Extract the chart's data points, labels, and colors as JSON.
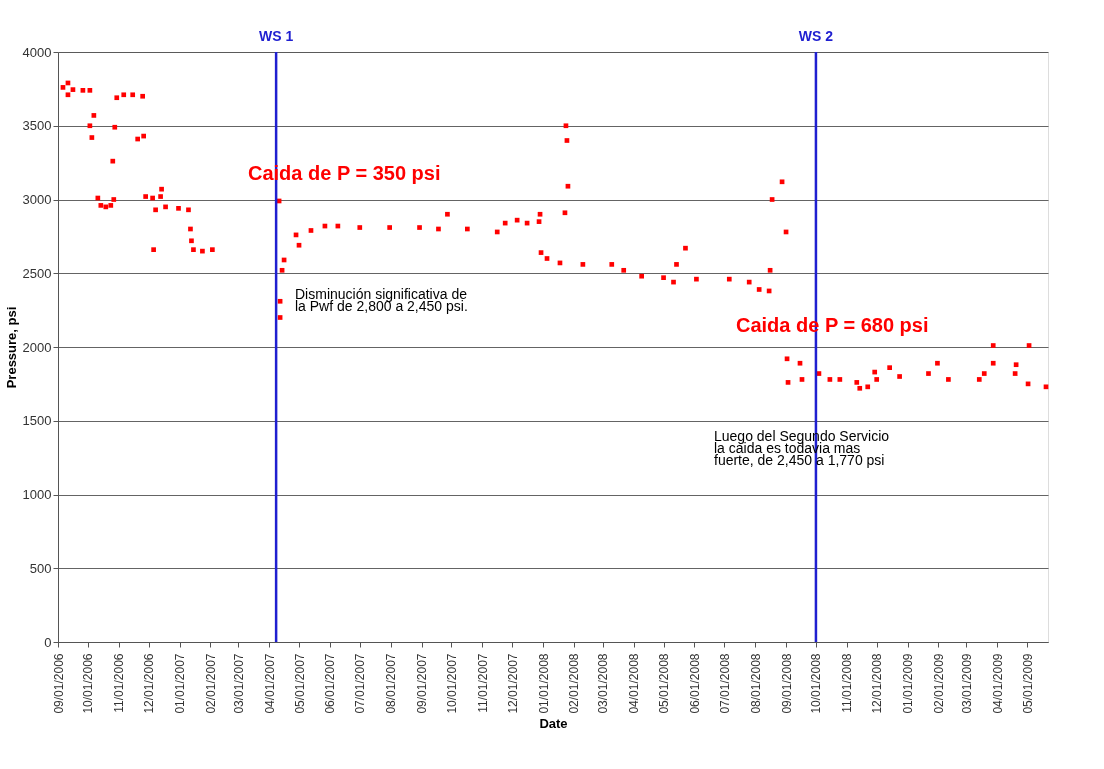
{
  "chart_data": {
    "type": "scatter",
    "xlabel": "Date",
    "ylabel": "Pressure, psi",
    "x": [
      "2006-09-06",
      "2006-09-11",
      "2006-09-11",
      "2006-09-16",
      "2006-09-26",
      "2006-10-03",
      "2006-10-03",
      "2006-10-05",
      "2006-10-07",
      "2006-10-11",
      "2006-10-14",
      "2006-10-19",
      "2006-10-24",
      "2006-10-26",
      "2006-10-27",
      "2006-10-28",
      "2006-10-30",
      "2006-11-06",
      "2006-11-15",
      "2006-11-20",
      "2006-11-25",
      "2006-11-26",
      "2006-11-28",
      "2006-12-05",
      "2006-12-06",
      "2006-12-08",
      "2006-12-13",
      "2006-12-14",
      "2006-12-18",
      "2006-12-31",
      "2007-01-10",
      "2007-01-12",
      "2007-01-13",
      "2007-01-15",
      "2007-01-24",
      "2007-02-03",
      "2007-04-11",
      "2007-04-12",
      "2007-04-12",
      "2007-04-14",
      "2007-04-16",
      "2007-04-28",
      "2007-05-01",
      "2007-05-13",
      "2007-05-27",
      "2007-06-09",
      "2007-07-01",
      "2007-07-31",
      "2007-08-30",
      "2007-09-27",
      "2007-09-18",
      "2007-10-17",
      "2007-11-16",
      "2007-11-24",
      "2007-12-06",
      "2007-12-16",
      "2007-12-28",
      "2007-12-29",
      "2007-12-30",
      "2008-01-05",
      "2008-01-18",
      "2008-01-23",
      "2008-01-24",
      "2008-01-25",
      "2008-01-26",
      "2008-02-10",
      "2008-03-10",
      "2008-03-22",
      "2008-04-09",
      "2008-05-01",
      "2008-05-11",
      "2008-05-14",
      "2008-05-23",
      "2008-06-03",
      "2008-07-06",
      "2008-07-26",
      "2008-08-05",
      "2008-08-15",
      "2008-08-16",
      "2008-08-18",
      "2008-08-28",
      "2008-09-01",
      "2008-09-02",
      "2008-09-03",
      "2008-09-15",
      "2008-09-17",
      "2008-10-04",
      "2008-10-15",
      "2008-10-25",
      "2008-11-11",
      "2008-11-14",
      "2008-11-22",
      "2008-11-29",
      "2008-12-01",
      "2008-12-14",
      "2008-12-24",
      "2009-01-22",
      "2009-01-31",
      "2009-02-11",
      "2009-03-14",
      "2009-03-19",
      "2009-03-28",
      "2009-03-28",
      "2009-04-19",
      "2009-04-20",
      "2009-05-02",
      "2009-05-03",
      "2009-05-20"
    ],
    "series": [
      {
        "color": "#ff0000",
        "values": [
          3760,
          3790,
          3710,
          3745,
          3740,
          3740,
          3500,
          3420,
          3570,
          3010,
          2960,
          2950,
          2960,
          3260,
          3000,
          3490,
          3690,
          3710,
          3710,
          3410,
          3700,
          3430,
          3020,
          3010,
          2660,
          2930,
          3020,
          3070,
          2950,
          2940,
          2930,
          2800,
          2720,
          2660,
          2650,
          2660,
          2990,
          2310,
          2200,
          2520,
          2590,
          2760,
          2690,
          2790,
          2820,
          2820,
          2810,
          2810,
          2810,
          2900,
          2800,
          2800,
          2780,
          2840,
          2860,
          2840,
          2850,
          2900,
          2640,
          2600,
          2570,
          2910,
          3500,
          3400,
          3090,
          2560,
          2560,
          2520,
          2480,
          2470,
          2440,
          2560,
          2670,
          2460,
          2460,
          2440,
          2390,
          2380,
          2520,
          3000,
          3120,
          2780,
          1920,
          1760,
          1890,
          1780,
          1820,
          1780,
          1780,
          1760,
          1720,
          1730,
          1830,
          1780,
          1860,
          1800,
          1820,
          1890,
          1780,
          1780,
          1820,
          2010,
          1890,
          1820,
          1880,
          1750,
          2010,
          1730
        ]
      }
    ],
    "xlim": [
      "2006-09-01",
      "2009-05-22"
    ],
    "xticks": [
      {
        "value": "2006-09-01",
        "label": "09/01/2006"
      },
      {
        "value": "2006-10-01",
        "label": "10/01/2006"
      },
      {
        "value": "2006-11-01",
        "label": "11/01/2006"
      },
      {
        "value": "2006-12-01",
        "label": "12/01/2006"
      },
      {
        "value": "2007-01-01",
        "label": "01/01/2007"
      },
      {
        "value": "2007-02-01",
        "label": "02/01/2007"
      },
      {
        "value": "2007-03-01",
        "label": "03/01/2007"
      },
      {
        "value": "2007-04-01",
        "label": "04/01/2007"
      },
      {
        "value": "2007-05-01",
        "label": "05/01/2007"
      },
      {
        "value": "2007-06-01",
        "label": "06/01/2007"
      },
      {
        "value": "2007-07-01",
        "label": "07/01/2007"
      },
      {
        "value": "2007-08-01",
        "label": "08/01/2007"
      },
      {
        "value": "2007-09-01",
        "label": "09/01/2007"
      },
      {
        "value": "2007-10-01",
        "label": "10/01/2007"
      },
      {
        "value": "2007-11-01",
        "label": "11/01/2007"
      },
      {
        "value": "2007-12-01",
        "label": "12/01/2007"
      },
      {
        "value": "2008-01-01",
        "label": "01/01/2008"
      },
      {
        "value": "2008-02-01",
        "label": "02/01/2008"
      },
      {
        "value": "2008-03-01",
        "label": "03/01/2008"
      },
      {
        "value": "2008-04-01",
        "label": "04/01/2008"
      },
      {
        "value": "2008-05-01",
        "label": "05/01/2008"
      },
      {
        "value": "2008-06-01",
        "label": "06/01/2008"
      },
      {
        "value": "2008-07-01",
        "label": "07/01/2008"
      },
      {
        "value": "2008-08-01",
        "label": "08/01/2008"
      },
      {
        "value": "2008-09-01",
        "label": "09/01/2008"
      },
      {
        "value": "2008-10-01",
        "label": "10/01/2008"
      },
      {
        "value": "2008-11-01",
        "label": "11/01/2008"
      },
      {
        "value": "2008-12-01",
        "label": "12/01/2008"
      },
      {
        "value": "2009-01-01",
        "label": "01/01/2009"
      },
      {
        "value": "2009-02-01",
        "label": "02/01/2009"
      },
      {
        "value": "2009-03-01",
        "label": "03/01/2009"
      },
      {
        "value": "2009-04-01",
        "label": "04/01/2009"
      },
      {
        "value": "2009-05-01",
        "label": "05/01/2009"
      }
    ],
    "ylim": [
      0,
      4000
    ],
    "yticks": [
      0,
      500,
      1000,
      1500,
      2000,
      2500,
      3000,
      3500,
      4000
    ],
    "grid": "y",
    "marker": "square",
    "ref_lines": [
      {
        "axis": "x",
        "value": "2007-04-08",
        "label": "WS 1",
        "color": "#1f1fd0"
      },
      {
        "axis": "x",
        "value": "2008-10-01",
        "label": "WS 2",
        "color": "#1f1fd0"
      }
    ],
    "annotations": [
      "Caida de P = 350 psi",
      "Disminución significativa de\nla Pwf de 2,800 a 2,450 psi.",
      "Caida de P = 680 psi",
      "Luego del Segundo Servicio\nla caida es todavia mas\nfuerte, de 2,450 a 1,770 psi"
    ]
  }
}
